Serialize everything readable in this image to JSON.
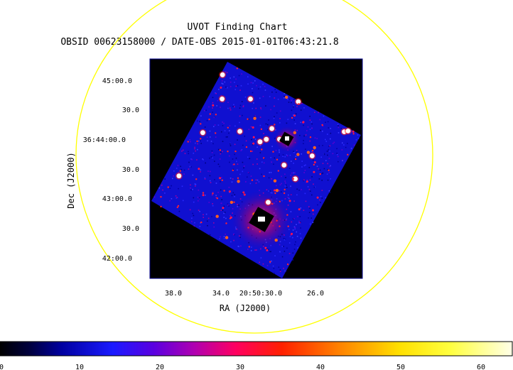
{
  "title": "UVOT Finding Chart",
  "subtitle": "OBSID 00623158000 / DATE-OBS 2015-01-01T06:43:21.8",
  "axes": {
    "xlabel": "RA (J2000)",
    "ylabel": "Dec (J2000)",
    "ra_ticks": [
      "38.0",
      "34.0",
      "20:50:30.0",
      "26.0"
    ],
    "dec_ticks": [
      "45:00.0",
      "30.0",
      "36:44:00.0",
      "30.0",
      "43:00.0",
      "30.0",
      "42:00.0"
    ]
  },
  "colorbar": {
    "tick_labels": [
      "0",
      "10",
      "20",
      "30",
      "40",
      "50",
      "60"
    ],
    "min": 0,
    "max": 64,
    "colormap": "heat"
  },
  "colors": {
    "circle": "#ffff00",
    "frame": "#00008b",
    "sky": "#1010d0",
    "star": "#ffffff",
    "halo": "#ff3030",
    "background": "#000000"
  }
}
